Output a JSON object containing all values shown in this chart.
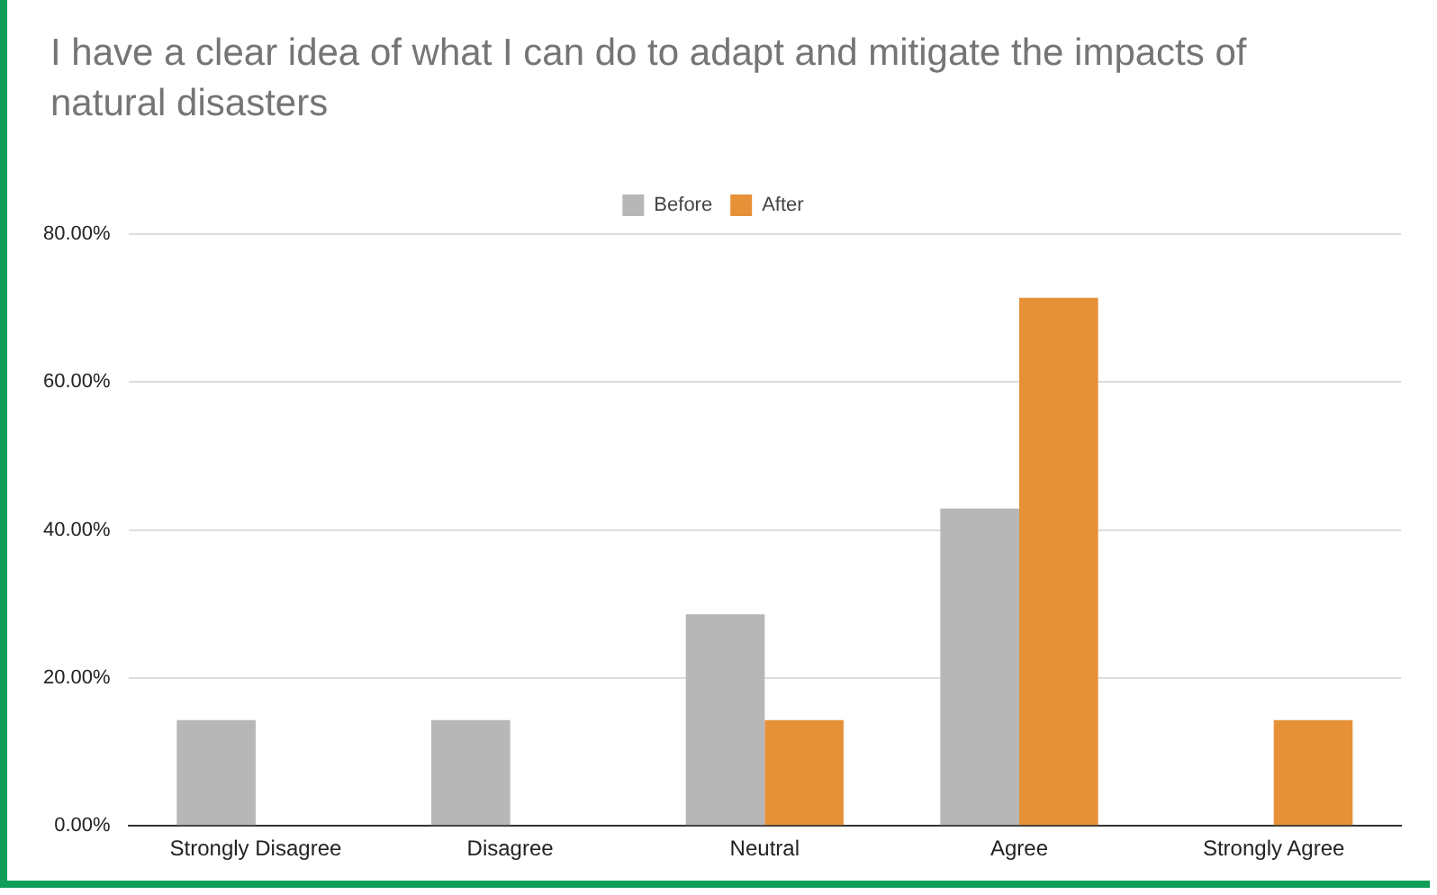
{
  "chart_data": {
    "type": "bar",
    "title": "I have a clear idea of what I can do to adapt and mitigate the impacts of natural disasters",
    "categories": [
      "Strongly Disagree",
      "Disagree",
      "Neutral",
      "Agree",
      "Strongly Agree"
    ],
    "series": [
      {
        "name": "Before",
        "color": "#b7b7b7",
        "values": [
          14.3,
          14.3,
          28.6,
          42.9,
          0
        ]
      },
      {
        "name": "After",
        "color": "#e69138",
        "values": [
          0,
          0,
          14.3,
          71.4,
          14.3
        ]
      }
    ],
    "ylim": [
      0,
      80
    ],
    "yticks": [
      {
        "value": 0,
        "label": "0.00%"
      },
      {
        "value": 20,
        "label": "20.00%"
      },
      {
        "value": 40,
        "label": "40.00%"
      },
      {
        "value": 60,
        "label": "60.00%"
      },
      {
        "value": 80,
        "label": "80.00%"
      }
    ],
    "grid": "y",
    "legend": "top"
  }
}
